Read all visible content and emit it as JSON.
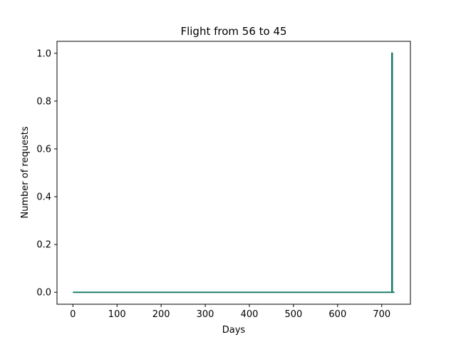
{
  "chart_data": {
    "type": "line",
    "title": "Flight from 56 to 45",
    "xlabel": "Days",
    "ylabel": "Number of requests",
    "xlim": [
      -36,
      765
    ],
    "ylim": [
      -0.05,
      1.05
    ],
    "x_ticks": [
      0,
      100,
      200,
      300,
      400,
      500,
      600,
      700
    ],
    "y_ticks": [
      0.0,
      0.2,
      0.4,
      0.6,
      0.8,
      1.0
    ],
    "x_tick_labels": [
      "0",
      "100",
      "200",
      "300",
      "400",
      "500",
      "600",
      "700"
    ],
    "y_tick_labels": [
      "0.0",
      "0.2",
      "0.4",
      "0.6",
      "0.8",
      "1.0"
    ],
    "grid": false,
    "series": [
      {
        "color": "#1f7f6a",
        "x": [
          0,
          723,
          723,
          724,
          724,
          729
        ],
        "y": [
          0,
          0,
          1,
          1,
          0,
          0
        ]
      }
    ]
  }
}
